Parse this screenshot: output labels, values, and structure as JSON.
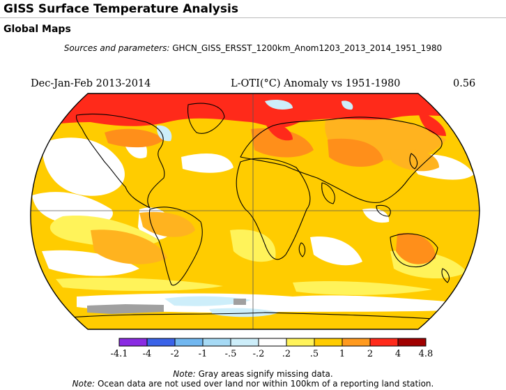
{
  "page": {
    "title": "GISS Surface Temperature Analysis",
    "section": "Global Maps",
    "sources_label": "Sources and parameters:",
    "sources_value": "GHCN_GISS_ERSST_1200km_Anom1203_2013_2014_1951_1980"
  },
  "map": {
    "season_label": "Dec-Jan-Feb 2013-2014",
    "index_label": "L-OTI(°C) Anomaly vs 1951-1980",
    "global_mean": "0.56",
    "projection": "Robinson"
  },
  "legend": {
    "ticks": [
      "-4.1",
      "-4",
      "-2",
      "-1",
      "-.5",
      "-.2",
      ".2",
      ".5",
      "1",
      "2",
      "4",
      "4.8"
    ],
    "colors": [
      "#8a2be2",
      "#3a63e8",
      "#71b7f0",
      "#a6daf5",
      "#cdeefa",
      "#ffffff",
      "#fff35a",
      "#ffcc00",
      "#ff9a1f",
      "#ff2a1a",
      "#a00000"
    ]
  },
  "palette": {
    "red": "#ff2a1a",
    "orange": "#ff8f1a",
    "light_orange": "#ffb31f",
    "gold": "#ffcc00",
    "yellow": "#fff35a",
    "white": "#ffffff",
    "light_blue": "#cdeefa",
    "blue": "#a6daf5",
    "gray": "#a0a0a0"
  },
  "notes": [
    {
      "label": "Note:",
      "text": "Gray areas signify missing data."
    },
    {
      "label": "Note:",
      "text": "Ocean data are not used over land nor within 100km of a reporting land station."
    }
  ]
}
